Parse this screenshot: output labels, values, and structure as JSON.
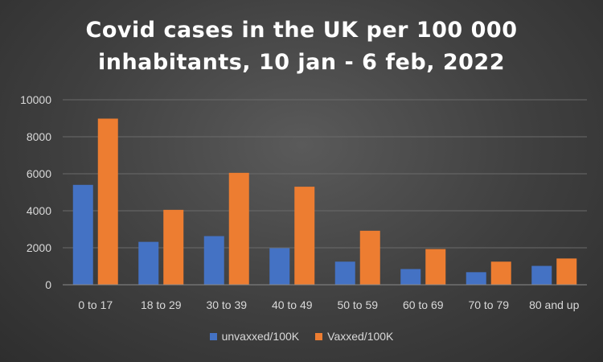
{
  "chart_data": {
    "type": "bar",
    "title_line1": "Covid cases in the UK per 100 000",
    "title_line2": "inhabitants, 10 jan - 6 feb, 2022",
    "categories": [
      "0 to 17",
      "18 to 29",
      "30 to 39",
      "40 to 49",
      "50 to 59",
      "60 to 69",
      "70 to 79",
      "80 and up"
    ],
    "series": [
      {
        "name": "unvaxxed/100K",
        "color": "#4472c4",
        "values": [
          5400,
          2320,
          2630,
          1980,
          1250,
          850,
          680,
          1020
        ]
      },
      {
        "name": "Vaxxed/100K",
        "color": "#ed7d31",
        "values": [
          8980,
          4050,
          6050,
          5300,
          2920,
          1930,
          1250,
          1420
        ]
      }
    ],
    "yticks": [
      0,
      2000,
      4000,
      6000,
      8000,
      10000
    ],
    "ylim": [
      0,
      10000
    ],
    "grid": true,
    "legend_position": "bottom"
  }
}
